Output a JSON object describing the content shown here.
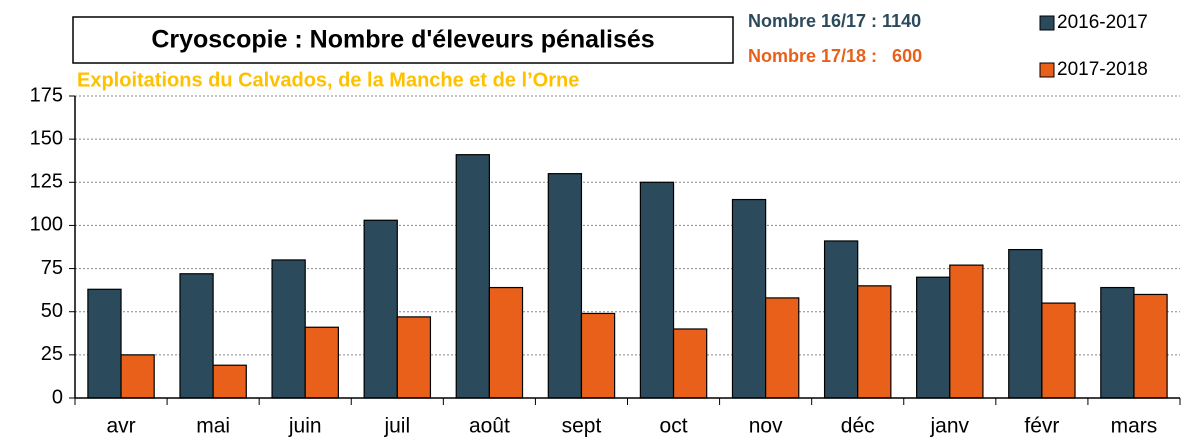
{
  "chart_data": {
    "type": "bar",
    "title": "Cryoscopie : Nombre d'éleveurs pénalisés",
    "subtitle": "Exploitations du Calvados, de la Manche et de l’Orne",
    "annotations": [
      "Nombre 16/17 : 1140",
      "Nombre 17/18 :   600"
    ],
    "categories": [
      "avr",
      "mai",
      "juin",
      "juil",
      "août",
      "sept",
      "oct",
      "nov",
      "déc",
      "janv",
      "févr",
      "mars"
    ],
    "series": [
      {
        "name": "2016-2017",
        "color": "#2b4b5c",
        "values": [
          63,
          72,
          80,
          103,
          141,
          130,
          125,
          115,
          91,
          70,
          86,
          64
        ]
      },
      {
        "name": "2017-2018",
        "color": "#e8601a",
        "values": [
          25,
          19,
          41,
          47,
          64,
          49,
          40,
          58,
          65,
          77,
          55,
          60
        ]
      }
    ],
    "ylim": [
      0,
      175
    ],
    "yticks": [
      0,
      25,
      50,
      75,
      100,
      125,
      150,
      175
    ],
    "grid": true
  }
}
